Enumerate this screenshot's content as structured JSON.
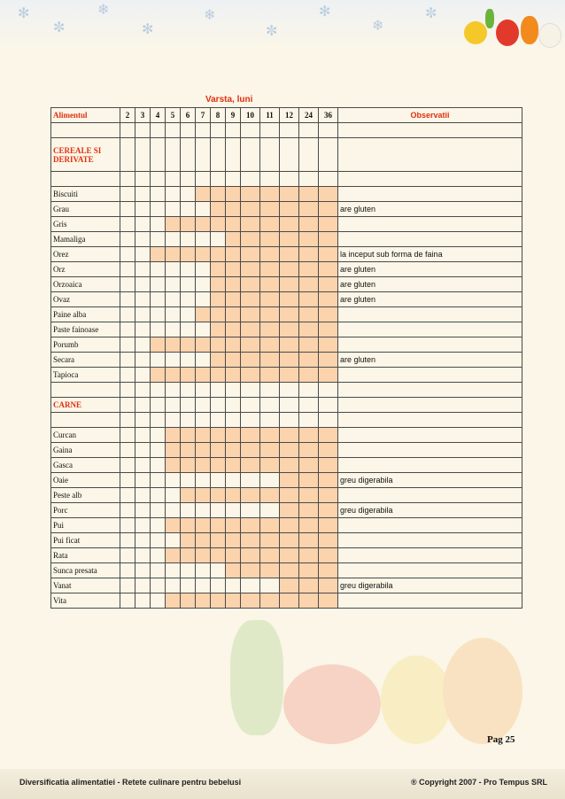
{
  "title": "Varsta, luni",
  "header": {
    "food": "Alimentul",
    "months": [
      "2",
      "3",
      "4",
      "5",
      "6",
      "7",
      "8",
      "9",
      "10",
      "11",
      "12",
      "24",
      "36"
    ],
    "notes": "Observatii"
  },
  "fill_color": "#fbd3ad",
  "accent_color": "#e03010",
  "rows": [
    {
      "kind": "section",
      "label": "CEREALE SI DERIVATE"
    },
    {
      "kind": "blank"
    },
    {
      "kind": "item",
      "label": "Biscuiti",
      "start": 7,
      "note": ""
    },
    {
      "kind": "item",
      "label": "Grau",
      "start": 8,
      "note": "are gluten"
    },
    {
      "kind": "item",
      "label": "Gris",
      "start": 5,
      "note": ""
    },
    {
      "kind": "item",
      "label": "Mamaliga",
      "start": 9,
      "note": ""
    },
    {
      "kind": "item",
      "label": "Orez",
      "start": 4,
      "note": "la inceput sub forma de faina"
    },
    {
      "kind": "item",
      "label": "Orz",
      "start": 8,
      "note": "are gluten"
    },
    {
      "kind": "item",
      "label": "Orzoaica",
      "start": 8,
      "note": "are gluten"
    },
    {
      "kind": "item",
      "label": "Ovaz",
      "start": 8,
      "note": "are gluten"
    },
    {
      "kind": "item",
      "label": "Paine alba",
      "start": 7,
      "note": ""
    },
    {
      "kind": "item",
      "label": "Paste fainoase",
      "start": 8,
      "note": ""
    },
    {
      "kind": "item",
      "label": "Porumb",
      "start": 4,
      "note": ""
    },
    {
      "kind": "item",
      "label": "Secara",
      "start": 8,
      "note": "are gluten"
    },
    {
      "kind": "item",
      "label": "Tapioca",
      "start": 4,
      "note": ""
    },
    {
      "kind": "blank"
    },
    {
      "kind": "section",
      "label": "CARNE"
    },
    {
      "kind": "blank"
    },
    {
      "kind": "item",
      "label": "Curcan",
      "start": 5,
      "note": ""
    },
    {
      "kind": "item",
      "label": "Gaina",
      "start": 5,
      "note": ""
    },
    {
      "kind": "item",
      "label": "Gasca",
      "start": 5,
      "note": ""
    },
    {
      "kind": "item",
      "label": "Oaie",
      "start": 12,
      "note": "greu digerabila"
    },
    {
      "kind": "item",
      "label": "Peste alb",
      "start": 6,
      "note": ""
    },
    {
      "kind": "item",
      "label": "Porc",
      "start": 12,
      "note": "greu digerabila"
    },
    {
      "kind": "item",
      "label": "Pui",
      "start": 5,
      "note": ""
    },
    {
      "kind": "item",
      "label": "Pui ficat",
      "start": 6,
      "note": ""
    },
    {
      "kind": "item",
      "label": "Rata",
      "start": 5,
      "note": ""
    },
    {
      "kind": "item",
      "label": "Sunca presata",
      "start": 9,
      "note": ""
    },
    {
      "kind": "item",
      "label": "Vanat",
      "start": 12,
      "note": "greu digerabila"
    },
    {
      "kind": "item",
      "label": "Vita",
      "start": 5,
      "note": ""
    }
  ],
  "page_label": "Pag  25",
  "footer": {
    "left": "Diversificatia alimentatiei - Retete culinare pentru bebelusi",
    "right": "® Copyright 2007 - Pro Tempus SRL"
  }
}
